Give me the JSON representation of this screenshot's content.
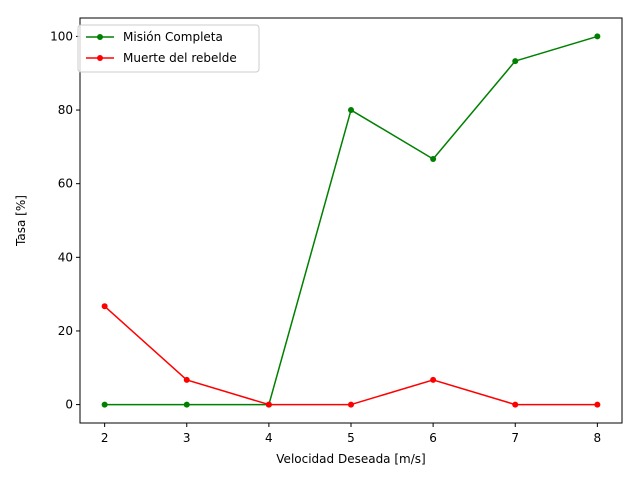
{
  "chart_data": {
    "type": "line",
    "x": [
      2,
      3,
      4,
      5,
      6,
      7,
      8
    ],
    "series": [
      {
        "name": "Misión Completa",
        "color": "#008000",
        "values": [
          0,
          0,
          0,
          80,
          66.7,
          93.3,
          100
        ]
      },
      {
        "name": "Muerte del rebelde",
        "color": "#ff0000",
        "values": [
          26.7,
          6.7,
          0,
          0,
          6.7,
          0,
          0
        ]
      }
    ],
    "xlabel": "Velocidad Deseada [m/s]",
    "ylabel": "Tasa [%]",
    "xlim": [
      1.7,
      8.3
    ],
    "ylim": [
      -5,
      105
    ],
    "xticks": [
      2,
      3,
      4,
      5,
      6,
      7,
      8
    ],
    "yticks": [
      0,
      20,
      40,
      60,
      80,
      100
    ],
    "grid": false,
    "legend_position": "top-left"
  }
}
